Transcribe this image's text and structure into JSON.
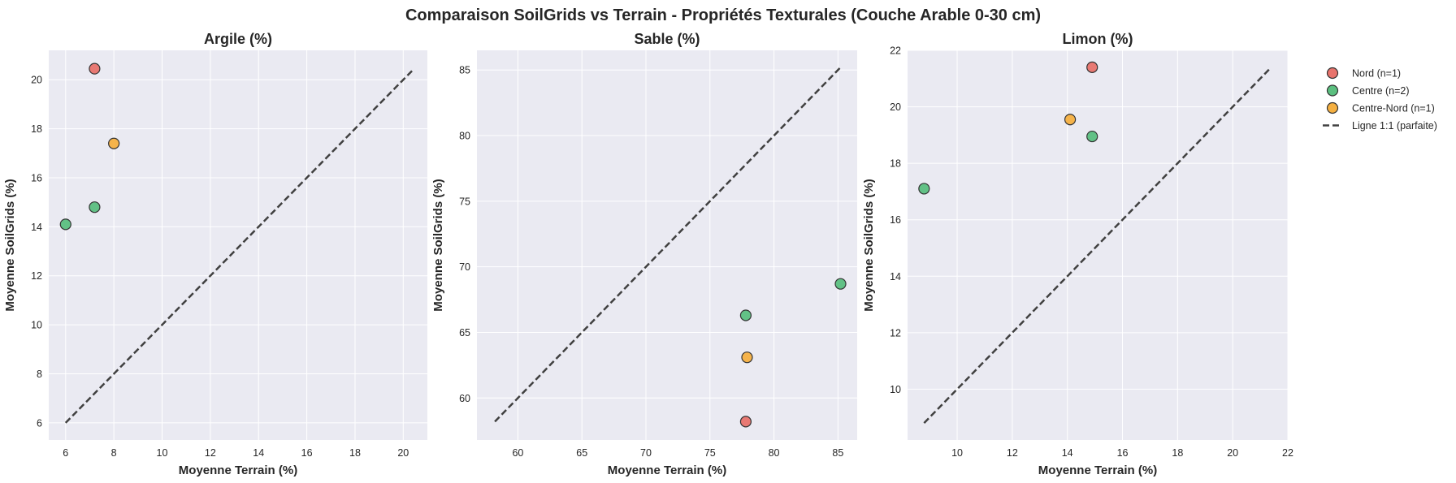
{
  "figure": {
    "title": "Comparaison SoilGrids vs Terrain - Propriétés Texturales (Couche Arable 0-30 cm)",
    "background": "#ffffff",
    "axes_background": "#eaeaf2",
    "grid_color": "#ffffff"
  },
  "legend": {
    "placement": "right, outside, top",
    "entries": [
      {
        "label": "Nord (n=1)",
        "kind": "marker",
        "color": "#e8736c"
      },
      {
        "label": "Centre (n=2)",
        "kind": "marker",
        "color": "#5bbf7f"
      },
      {
        "label": "Centre-Nord (n=1)",
        "kind": "marker",
        "color": "#f5b041"
      },
      {
        "label": "Ligne 1:1 (parfaite)",
        "kind": "line",
        "color": "#404040"
      }
    ]
  },
  "chart_data": [
    {
      "type": "scatter",
      "title": "Argile (%)",
      "xlabel": "Moyenne Terrain (%)",
      "ylabel": "Moyenne SoilGrids (%)",
      "xlim": [
        5.3,
        21.0
      ],
      "ylim": [
        5.3,
        21.2
      ],
      "xticks": [
        6,
        8,
        10,
        12,
        14,
        16,
        18,
        20
      ],
      "yticks": [
        6,
        8,
        10,
        12,
        14,
        16,
        18,
        20
      ],
      "grid": true,
      "identity_line": [
        6.0,
        20.4
      ],
      "points": [
        {
          "x": 7.2,
          "y": 20.45,
          "color": "#e8736c"
        },
        {
          "x": 6.0,
          "y": 14.1,
          "color": "#5bbf7f"
        },
        {
          "x": 7.2,
          "y": 14.8,
          "color": "#5bbf7f"
        },
        {
          "x": 8.0,
          "y": 17.4,
          "color": "#f5b041"
        }
      ]
    },
    {
      "type": "scatter",
      "title": "Sable (%)",
      "xlabel": "Moyenne Terrain (%)",
      "ylabel": "Moyenne SoilGrids (%)",
      "xlim": [
        56.8,
        86.5
      ],
      "ylim": [
        56.8,
        86.5
      ],
      "xticks": [
        60,
        65,
        70,
        75,
        80,
        85
      ],
      "yticks": [
        60,
        65,
        70,
        75,
        80,
        85
      ],
      "grid": true,
      "identity_line": [
        58.2,
        85.2
      ],
      "points": [
        {
          "x": 77.8,
          "y": 58.2,
          "color": "#e8736c"
        },
        {
          "x": 77.8,
          "y": 66.3,
          "color": "#5bbf7f"
        },
        {
          "x": 85.2,
          "y": 68.7,
          "color": "#5bbf7f"
        },
        {
          "x": 77.9,
          "y": 63.1,
          "color": "#f5b041"
        }
      ]
    },
    {
      "type": "scatter",
      "title": "Limon (%)",
      "xlabel": "Moyenne Terrain (%)",
      "ylabel": "Moyenne SoilGrids (%)",
      "xlim": [
        8.2,
        22.0
      ],
      "ylim": [
        8.2,
        22.0
      ],
      "xticks": [
        10,
        12,
        14,
        16,
        18,
        20,
        22
      ],
      "yticks": [
        10,
        12,
        14,
        16,
        18,
        20,
        22
      ],
      "grid": true,
      "identity_line": [
        8.8,
        21.35
      ],
      "points": [
        {
          "x": 14.9,
          "y": 21.4,
          "color": "#e8736c"
        },
        {
          "x": 8.8,
          "y": 17.1,
          "color": "#5bbf7f"
        },
        {
          "x": 14.9,
          "y": 18.95,
          "color": "#5bbf7f"
        },
        {
          "x": 14.1,
          "y": 19.55,
          "color": "#f5b041"
        }
      ]
    }
  ]
}
